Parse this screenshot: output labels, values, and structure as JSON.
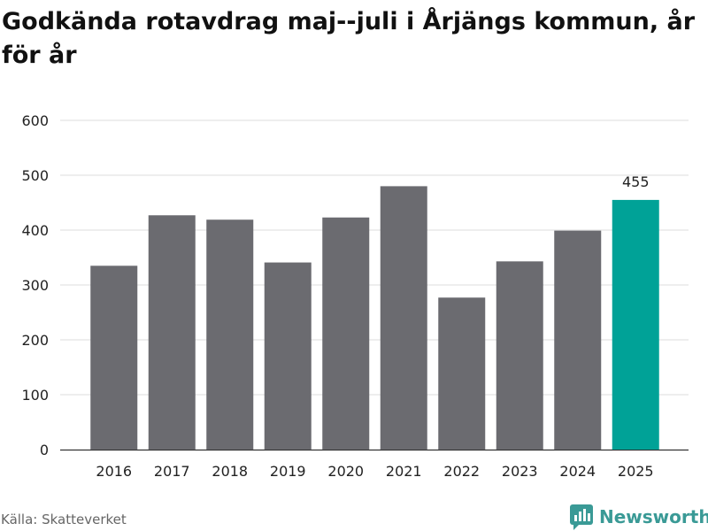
{
  "title": "Godkända rotavdrag maj--juli i Årjängs kommun, år för år",
  "source": "Källa: Skatteverket",
  "brand": {
    "name": "Newsworthy",
    "logo_icon": "bar-chart-speech-bubble-icon"
  },
  "colors": {
    "bar": "#6b6b70",
    "highlight": "#00a297",
    "grid": "#dddddd",
    "text": "#222222",
    "brand": "#3a9a96"
  },
  "chart_data": {
    "type": "bar",
    "categories": [
      "2016",
      "2017",
      "2018",
      "2019",
      "2020",
      "2021",
      "2022",
      "2023",
      "2024",
      "2025"
    ],
    "values": [
      335,
      427,
      419,
      341,
      423,
      480,
      277,
      343,
      399,
      455
    ],
    "yticks": [
      "0",
      "100",
      "200",
      "300",
      "400",
      "500",
      "600"
    ],
    "ylim": [
      0,
      600
    ],
    "highlight_category": "2025",
    "annotations": [
      {
        "category": "2025",
        "text": "455"
      }
    ],
    "grid": true,
    "legend": "none",
    "xlabel": "",
    "ylabel": ""
  }
}
